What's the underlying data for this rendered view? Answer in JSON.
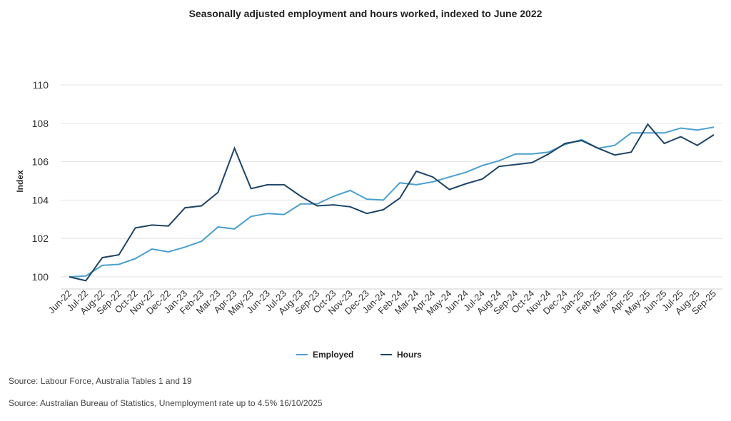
{
  "chart_data": {
    "type": "line",
    "title": "Seasonally adjusted employment and hours worked, indexed to June 2022",
    "xlabel": "",
    "ylabel": "Index",
    "ylim": [
      100,
      110
    ],
    "yticks": [
      "100",
      "102",
      "104",
      "106",
      "108",
      "110"
    ],
    "grid": true,
    "legend_position": "bottom",
    "categories": [
      "Jun-22",
      "Jul-22",
      "Aug-22",
      "Sep-22",
      "Oct-22",
      "Nov-22",
      "Dec-22",
      "Jan-23",
      "Feb-23",
      "Mar-23",
      "Apr-23",
      "May-23",
      "Jun-23",
      "Jul-23",
      "Aug-23",
      "Sep-23",
      "Oct-23",
      "Nov-23",
      "Dec-23",
      "Jan-24",
      "Feb-24",
      "Mar-24",
      "Apr-24",
      "May-24",
      "Jun-24",
      "Jul-24",
      "Aug-24",
      "Sep-24",
      "Oct-24",
      "Nov-24",
      "Dec-24",
      "Jan-25",
      "Feb-25",
      "Mar-25",
      "Apr-25",
      "May-25",
      "Jun-25",
      "Jul-25",
      "Aug-25",
      "Sep-25"
    ],
    "series": [
      {
        "name": "Employed",
        "color": "#4a9fcf",
        "values": [
          100,
          100.05,
          100.6,
          100.65,
          100.95,
          101.45,
          101.3,
          101.55,
          101.85,
          102.6,
          102.5,
          103.15,
          103.3,
          103.25,
          103.8,
          103.8,
          104.2,
          104.5,
          104.05,
          104.0,
          104.9,
          104.8,
          104.95,
          105.2,
          105.45,
          105.8,
          106.05,
          106.4,
          106.4,
          106.5,
          106.9,
          107.15,
          106.7,
          106.85,
          107.5,
          107.5,
          107.5,
          107.75,
          107.65,
          107.8
        ]
      },
      {
        "name": "Hours",
        "color": "#1d4466",
        "values": [
          100,
          99.8,
          101.0,
          101.15,
          102.55,
          102.7,
          102.65,
          103.6,
          103.7,
          104.4,
          106.7,
          104.6,
          104.8,
          104.8,
          104.2,
          103.7,
          103.75,
          103.65,
          103.3,
          103.5,
          104.1,
          105.5,
          105.2,
          104.55,
          104.85,
          105.1,
          105.75,
          105.85,
          105.95,
          106.4,
          106.95,
          107.1,
          106.7,
          106.35,
          106.5,
          107.95,
          106.95,
          107.3,
          106.85,
          107.4
        ]
      }
    ]
  },
  "sources": [
    "Source: Labour Force, Australia Tables 1 and 19",
    "Source: Australian Bureau of Statistics, Unemployment rate up to 4.5% 16/10/2025"
  ]
}
